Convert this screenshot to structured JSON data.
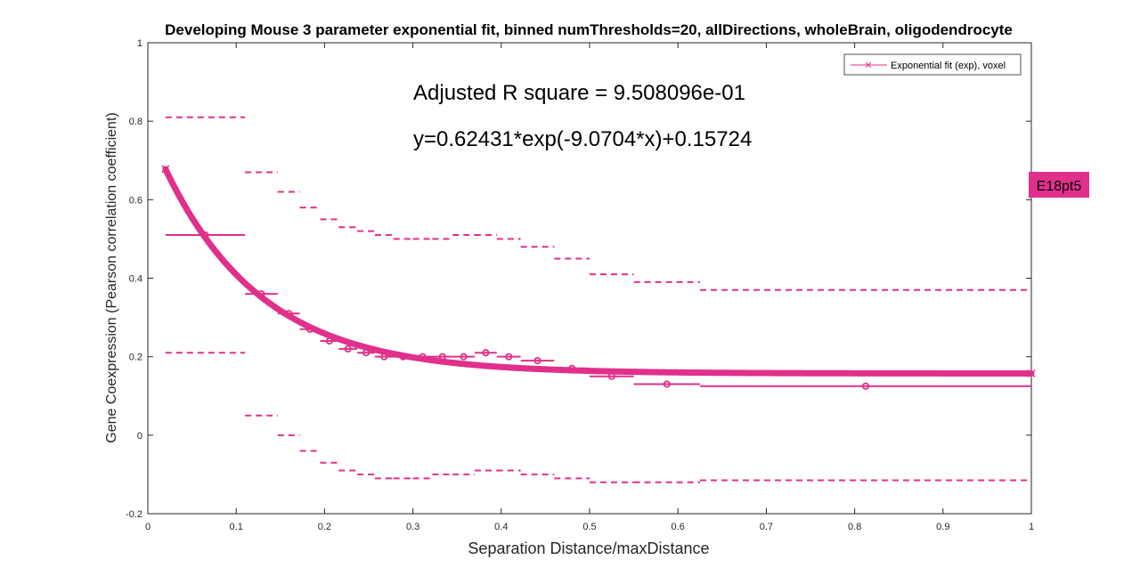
{
  "chart_data": {
    "type": "line",
    "title": "Developing Mouse 3 parameter exponential fit, binned numThresholds=20, allDirections, wholeBrain, oligodendrocyte",
    "xlabel": "Separation Distance/maxDistance",
    "ylabel": "Gene Coexpression (Pearson correlation coefficient)",
    "xlim": [
      0,
      1
    ],
    "ylim": [
      -0.2,
      1
    ],
    "xticks": [
      0,
      0.1,
      0.2,
      0.3,
      0.4,
      0.5,
      0.6,
      0.7,
      0.8,
      0.9,
      1
    ],
    "yticks": [
      -0.2,
      0,
      0.2,
      0.4,
      0.6,
      0.8,
      1
    ],
    "xtick_labels": [
      "0",
      "0.1",
      "0.2",
      "0.3",
      "0.4",
      "0.5",
      "0.6",
      "0.7",
      "0.8",
      "0.9",
      "1"
    ],
    "ytick_labels": [
      "-0.2",
      "0",
      "0.2",
      "0.4",
      "0.6",
      "0.8",
      "1"
    ],
    "grid": false,
    "legend_position": "top-right",
    "color": "#e0308c",
    "annotations": {
      "r_square": "Adjusted R square = 9.508096e-01",
      "equation": "y=0.62431*exp(-9.0704*x)+0.15724"
    },
    "badge_label": "E18pt5",
    "fit": {
      "name": "Exponential fit (exp), voxel",
      "a": 0.62431,
      "b": -9.0704,
      "c": 0.15724,
      "x_start": 0.02,
      "x_end": 1.0
    },
    "bins": [
      {
        "x0": 0.02,
        "x1": 0.11,
        "mean": 0.51,
        "upper": 0.81,
        "lower": 0.21
      },
      {
        "x0": 0.11,
        "x1": 0.147,
        "mean": 0.36,
        "upper": 0.67,
        "lower": 0.05
      },
      {
        "x0": 0.147,
        "x1": 0.172,
        "mean": 0.31,
        "upper": 0.62,
        "lower": 0.0
      },
      {
        "x0": 0.172,
        "x1": 0.195,
        "mean": 0.27,
        "upper": 0.58,
        "lower": -0.04
      },
      {
        "x0": 0.195,
        "x1": 0.216,
        "mean": 0.24,
        "upper": 0.55,
        "lower": -0.07
      },
      {
        "x0": 0.216,
        "x1": 0.237,
        "mean": 0.22,
        "upper": 0.53,
        "lower": -0.09
      },
      {
        "x0": 0.237,
        "x1": 0.257,
        "mean": 0.21,
        "upper": 0.52,
        "lower": -0.1
      },
      {
        "x0": 0.257,
        "x1": 0.278,
        "mean": 0.2,
        "upper": 0.51,
        "lower": -0.11
      },
      {
        "x0": 0.278,
        "x1": 0.3,
        "mean": 0.2,
        "upper": 0.5,
        "lower": -0.11
      },
      {
        "x0": 0.3,
        "x1": 0.322,
        "mean": 0.2,
        "upper": 0.5,
        "lower": -0.11
      },
      {
        "x0": 0.322,
        "x1": 0.345,
        "mean": 0.2,
        "upper": 0.5,
        "lower": -0.1
      },
      {
        "x0": 0.345,
        "x1": 0.37,
        "mean": 0.2,
        "upper": 0.51,
        "lower": -0.1
      },
      {
        "x0": 0.37,
        "x1": 0.395,
        "mean": 0.21,
        "upper": 0.51,
        "lower": -0.09
      },
      {
        "x0": 0.395,
        "x1": 0.422,
        "mean": 0.2,
        "upper": 0.5,
        "lower": -0.09
      },
      {
        "x0": 0.422,
        "x1": 0.46,
        "mean": 0.19,
        "upper": 0.48,
        "lower": -0.1
      },
      {
        "x0": 0.46,
        "x1": 0.5,
        "mean": 0.17,
        "upper": 0.45,
        "lower": -0.11
      },
      {
        "x0": 0.5,
        "x1": 0.55,
        "mean": 0.15,
        "upper": 0.41,
        "lower": -0.12
      },
      {
        "x0": 0.55,
        "x1": 0.625,
        "mean": 0.13,
        "upper": 0.39,
        "lower": -0.12
      },
      {
        "x0": 0.625,
        "x1": 1.0,
        "mean": 0.125,
        "upper": 0.37,
        "lower": -0.115
      }
    ]
  }
}
